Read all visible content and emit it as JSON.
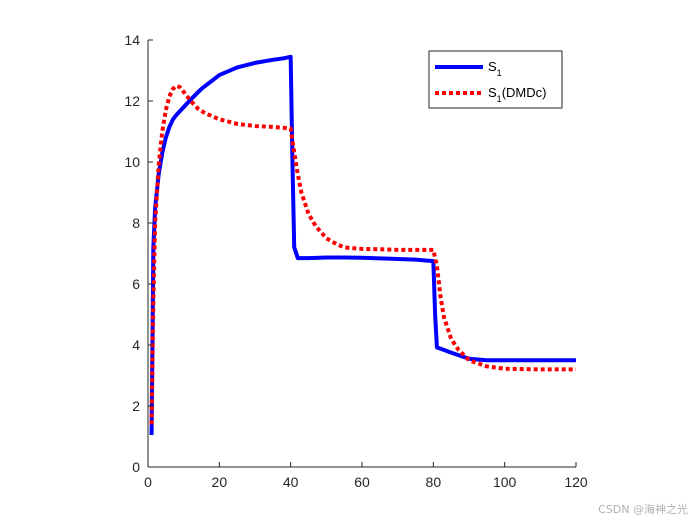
{
  "chart_data": {
    "type": "line",
    "title": "",
    "xlabel": "",
    "ylabel": "",
    "xlim": [
      0,
      120
    ],
    "ylim": [
      0,
      14
    ],
    "xticks": [
      0,
      20,
      40,
      60,
      80,
      100,
      120
    ],
    "yticks": [
      0,
      2,
      4,
      6,
      8,
      10,
      12,
      14
    ],
    "grid": false,
    "legend_position": "top-right",
    "series": [
      {
        "name": "S",
        "subscript": "1",
        "suffix": "",
        "color": "#0000ff",
        "style": "solid",
        "x": [
          1,
          1.5,
          2,
          3,
          4,
          5,
          6,
          7,
          8,
          10,
          12,
          15,
          20,
          25,
          30,
          35,
          38,
          40,
          40.5,
          41,
          42,
          45,
          50,
          55,
          60,
          65,
          70,
          75,
          80,
          80.5,
          81,
          82,
          85,
          90,
          95,
          100,
          110,
          120
        ],
        "y": [
          1.05,
          7.2,
          8.5,
          9.6,
          10.3,
          10.8,
          11.15,
          11.4,
          11.55,
          11.8,
          12.05,
          12.4,
          12.85,
          13.1,
          13.25,
          13.35,
          13.4,
          13.45,
          10.0,
          7.2,
          6.85,
          6.85,
          6.87,
          6.87,
          6.86,
          6.84,
          6.82,
          6.8,
          6.75,
          5.0,
          3.92,
          3.88,
          3.75,
          3.55,
          3.5,
          3.5,
          3.5,
          3.5
        ]
      },
      {
        "name": "S",
        "subscript": "1",
        "suffix": "(DMDc)",
        "color": "#ff0000",
        "style": "dotted",
        "x": [
          1,
          1.5,
          2,
          3,
          4,
          5,
          6,
          7,
          8,
          9,
          10,
          12,
          14,
          16,
          18,
          20,
          25,
          30,
          35,
          40,
          41,
          42,
          43,
          45,
          47,
          50,
          53,
          55,
          60,
          65,
          70,
          75,
          80,
          81,
          82,
          83,
          85,
          87,
          90,
          95,
          100,
          110,
          120
        ],
        "y": [
          1.4,
          5.5,
          8.0,
          9.9,
          11.0,
          11.7,
          12.15,
          12.4,
          12.5,
          12.45,
          12.3,
          12.0,
          11.75,
          11.6,
          11.5,
          11.4,
          11.25,
          11.18,
          11.15,
          11.1,
          10.3,
          9.6,
          9.0,
          8.3,
          7.9,
          7.5,
          7.3,
          7.2,
          7.15,
          7.14,
          7.12,
          7.12,
          7.12,
          6.6,
          5.6,
          4.9,
          4.2,
          3.85,
          3.5,
          3.3,
          3.22,
          3.2,
          3.2
        ]
      }
    ]
  },
  "watermark": "CSDN @海神之光"
}
